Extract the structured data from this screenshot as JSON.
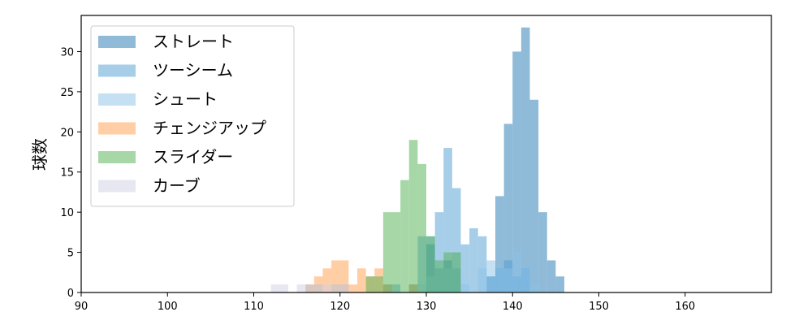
{
  "chart_data": {
    "type": "bar",
    "subtype": "overlapping-histogram",
    "title": "",
    "xlabel": "",
    "ylabel": "球数",
    "xlim": [
      90,
      170
    ],
    "ylim": [
      0,
      34.5
    ],
    "xticks": [
      90,
      100,
      110,
      120,
      130,
      140,
      150,
      160
    ],
    "yticks": [
      0,
      5,
      10,
      15,
      20,
      25,
      30
    ],
    "grid": false,
    "legend_position": "top-left",
    "bar_alpha": 0.5,
    "series": [
      {
        "name": "ストレート",
        "color": "#1f77b4",
        "bin_width": 1.0,
        "bins": [
          [
            130,
            6
          ],
          [
            131,
            3
          ],
          [
            132,
            4
          ],
          [
            133,
            3
          ],
          [
            134,
            0
          ],
          [
            135,
            0
          ],
          [
            136,
            0
          ],
          [
            137,
            2
          ],
          [
            138,
            12
          ],
          [
            139,
            21
          ],
          [
            140,
            30
          ],
          [
            141,
            33
          ],
          [
            142,
            24
          ],
          [
            143,
            10
          ],
          [
            144,
            4
          ],
          [
            145,
            2
          ]
        ]
      },
      {
        "name": "ツーシーム",
        "color": "#4e9dd3",
        "bin_width": 1.0,
        "bins": [
          [
            125,
            1
          ],
          [
            126,
            1
          ],
          [
            127,
            0
          ],
          [
            128,
            1
          ],
          [
            129,
            7
          ],
          [
            130,
            7
          ],
          [
            131,
            10
          ],
          [
            132,
            18
          ],
          [
            133,
            13
          ],
          [
            134,
            6
          ],
          [
            135,
            8
          ],
          [
            136,
            7
          ],
          [
            137,
            2
          ],
          [
            138,
            3
          ],
          [
            139,
            4
          ],
          [
            140,
            2
          ],
          [
            141,
            3
          ]
        ]
      },
      {
        "name": "シュート",
        "color": "#8cc2e8",
        "bin_width": 1.0,
        "bins": [
          [
            116,
            1
          ],
          [
            117,
            1
          ],
          [
            118,
            0
          ],
          [
            119,
            1
          ],
          [
            120,
            1
          ],
          [
            121,
            0
          ],
          [
            125,
            1
          ],
          [
            126,
            0
          ],
          [
            127,
            0
          ],
          [
            128,
            1
          ],
          [
            129,
            1
          ],
          [
            130,
            2
          ],
          [
            131,
            3
          ],
          [
            132,
            3
          ],
          [
            133,
            5
          ],
          [
            134,
            1
          ],
          [
            135,
            0
          ],
          [
            136,
            3
          ],
          [
            137,
            4
          ],
          [
            138,
            3
          ],
          [
            139,
            3
          ],
          [
            140,
            5
          ],
          [
            141,
            3
          ],
          [
            142,
            1
          ]
        ]
      },
      {
        "name": "チェンジアップ",
        "color": "#ff9e4a",
        "bin_width": 1.0,
        "bins": [
          [
            116,
            1
          ],
          [
            117,
            2
          ],
          [
            118,
            3
          ],
          [
            119,
            4
          ],
          [
            120,
            4
          ],
          [
            121,
            1
          ],
          [
            122,
            3
          ],
          [
            123,
            2
          ],
          [
            124,
            3
          ],
          [
            125,
            1
          ],
          [
            126,
            0
          ],
          [
            127,
            0
          ],
          [
            128,
            1
          ]
        ]
      },
      {
        "name": "スライダー",
        "color": "#4fb04f",
        "bin_width": 1.0,
        "bins": [
          [
            123,
            2
          ],
          [
            124,
            2
          ],
          [
            125,
            10
          ],
          [
            126,
            10
          ],
          [
            127,
            14
          ],
          [
            128,
            19
          ],
          [
            129,
            16
          ],
          [
            130,
            7
          ],
          [
            131,
            4
          ],
          [
            132,
            5
          ],
          [
            133,
            5
          ],
          [
            134,
            0
          ],
          [
            135,
            0
          ]
        ]
      },
      {
        "name": "カーブ",
        "color": "#d0d0e6",
        "bin_width": 1.0,
        "bins": [
          [
            112,
            1
          ],
          [
            113,
            1
          ],
          [
            114,
            0
          ],
          [
            115,
            1
          ],
          [
            116,
            1
          ],
          [
            117,
            1
          ],
          [
            118,
            1
          ],
          [
            119,
            1
          ],
          [
            120,
            1
          ],
          [
            121,
            0
          ]
        ]
      }
    ]
  }
}
